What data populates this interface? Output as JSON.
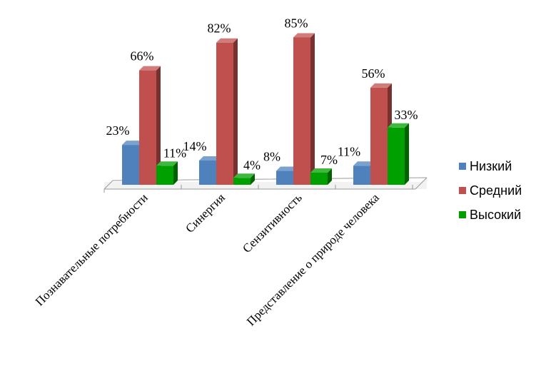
{
  "chart_data": {
    "type": "bar",
    "categories": [
      "Познавательные потребности",
      "Синергия",
      "Сензитивность",
      "Представление о природе человека"
    ],
    "series": [
      {
        "name": "Низкий",
        "values": [
          23,
          14,
          8,
          11
        ],
        "labels": [
          "23%",
          "14%",
          "8%",
          "11%"
        ],
        "color": "#4F81BD"
      },
      {
        "name": "Средний",
        "values": [
          66,
          82,
          85,
          56
        ],
        "labels": [
          "66%",
          "82%",
          "85%",
          "56%"
        ],
        "color": "#C0504D"
      },
      {
        "name": "Высокий",
        "values": [
          11,
          4,
          7,
          33
        ],
        "labels": [
          "11%",
          "4%",
          "7%",
          "33%"
        ],
        "color": "#00A000"
      }
    ],
    "ylim": [
      0,
      100
    ],
    "grid": false,
    "legend_position": "right",
    "style": "3d-clustered-column"
  }
}
